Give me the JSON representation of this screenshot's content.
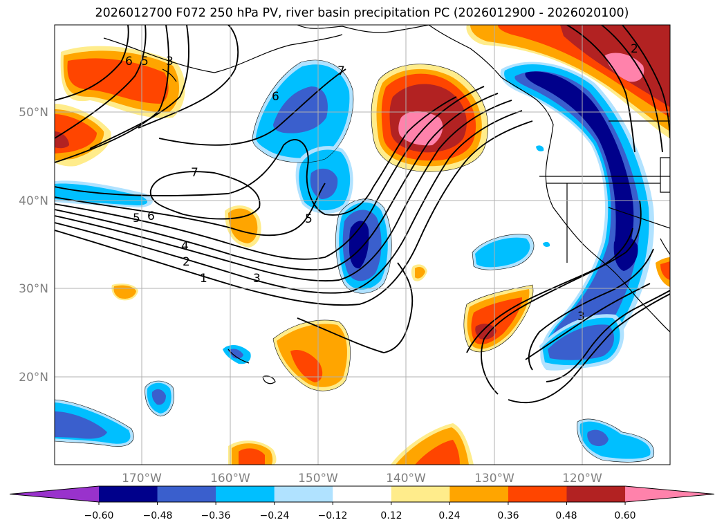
{
  "title": "2026012700 F072 250 hPa PV, river basin precipitation PC (2026012900 - 2026020100)",
  "map": {
    "lat_ticks": [
      "50°N",
      "40°N",
      "30°N",
      "20°N"
    ],
    "lon_ticks": [
      "170°W",
      "160°W",
      "150°W",
      "140°W",
      "130°W",
      "120°W"
    ],
    "pv_contour_labels": [
      "6",
      "5",
      "3",
      "7",
      "6",
      "7",
      "6",
      "5",
      "5",
      "4",
      "2",
      "1",
      "3",
      "3",
      "2"
    ]
  },
  "colorbar": {
    "ticks": [
      "−0.60",
      "−0.48",
      "−0.36",
      "−0.24",
      "−0.12",
      "0.12",
      "0.24",
      "0.36",
      "0.48",
      "0.60"
    ],
    "colors": [
      "#9932cc",
      "#00008b",
      "#3a5fcd",
      "#00bfff",
      "#b0e2ff",
      "#ffffff",
      "#ffec8b",
      "#ffa500",
      "#ff4500",
      "#b22222",
      "#ff82ab"
    ]
  }
}
